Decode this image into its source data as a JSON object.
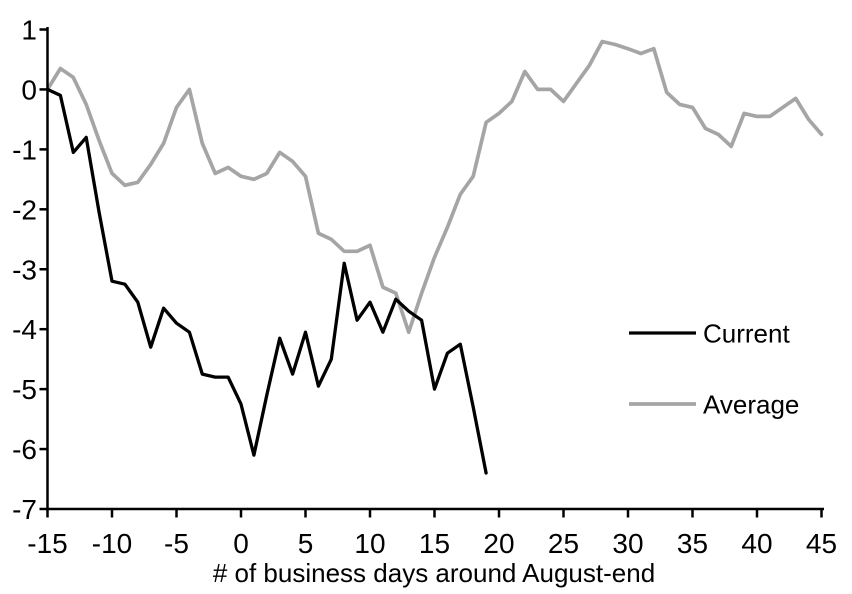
{
  "chart_data": {
    "type": "line",
    "title": "",
    "xlabel": "# of business days around August-end",
    "ylabel": "",
    "xlim": [
      -15,
      45
    ],
    "ylim": [
      -7,
      1
    ],
    "grid": false,
    "legend_position": "right-middle",
    "x_ticks": [
      {
        "value": -15,
        "label": "-15"
      },
      {
        "value": -10,
        "label": "-10"
      },
      {
        "value": -5,
        "label": "-5"
      },
      {
        "value": 0,
        "label": "0"
      },
      {
        "value": 5,
        "label": "5"
      },
      {
        "value": 10,
        "label": "10"
      },
      {
        "value": 15,
        "label": "15"
      },
      {
        "value": 20,
        "label": "20"
      },
      {
        "value": 25,
        "label": "25"
      },
      {
        "value": 30,
        "label": "30"
      },
      {
        "value": 35,
        "label": "35"
      },
      {
        "value": 40,
        "label": "40"
      },
      {
        "value": 45,
        "label": "45"
      }
    ],
    "y_ticks": [
      {
        "value": 1,
        "label": "1"
      },
      {
        "value": 0,
        "label": "0"
      },
      {
        "value": -1,
        "label": "-1"
      },
      {
        "value": -2,
        "label": "-2"
      },
      {
        "value": -3,
        "label": "-3"
      },
      {
        "value": -4,
        "label": "-4"
      },
      {
        "value": -5,
        "label": "-5"
      },
      {
        "value": -6,
        "label": "-6"
      },
      {
        "value": -7,
        "label": "-7"
      }
    ],
    "series": [
      {
        "name": "Current",
        "color": "#000000",
        "x": [
          -15,
          -14,
          -13,
          -12,
          -11,
          -10,
          -9,
          -8,
          -7,
          -6,
          -5,
          -4,
          -3,
          -2,
          -1,
          0,
          1,
          2,
          3,
          4,
          5,
          6,
          7,
          8,
          9,
          10,
          11,
          12,
          13,
          14,
          15,
          16,
          17,
          18,
          19
        ],
        "values": [
          0,
          -0.1,
          -1.05,
          -0.8,
          -2.05,
          -3.2,
          -3.25,
          -3.55,
          -4.3,
          -3.65,
          -3.9,
          -4.05,
          -4.75,
          -4.8,
          -4.8,
          -5.25,
          -6.1,
          -5.1,
          -4.15,
          -4.75,
          -4.05,
          -4.95,
          -4.5,
          -2.9,
          -3.85,
          -3.55,
          -4.05,
          -3.5,
          -3.7,
          -3.85,
          -5.0,
          -4.4,
          -4.25,
          -5.3,
          -6.4
        ]
      },
      {
        "name": "Average",
        "color": "#a5a5a5",
        "x": [
          -15,
          -14,
          -13,
          -12,
          -11,
          -10,
          -9,
          -8,
          -7,
          -6,
          -5,
          -4,
          -3,
          -2,
          -1,
          0,
          1,
          2,
          3,
          4,
          5,
          6,
          7,
          8,
          9,
          10,
          11,
          12,
          13,
          14,
          15,
          16,
          17,
          18,
          19,
          20,
          21,
          22,
          23,
          24,
          25,
          26,
          27,
          28,
          29,
          30,
          31,
          32,
          33,
          34,
          35,
          36,
          37,
          38,
          39,
          40,
          41,
          42,
          43,
          44,
          45
        ],
        "values": [
          0,
          0.35,
          0.2,
          -0.25,
          -0.85,
          -1.4,
          -1.6,
          -1.55,
          -1.25,
          -0.9,
          -0.3,
          0,
          -0.9,
          -1.4,
          -1.3,
          -1.45,
          -1.5,
          -1.4,
          -1.05,
          -1.2,
          -1.45,
          -2.4,
          -2.5,
          -2.7,
          -2.7,
          -2.6,
          -3.3,
          -3.4,
          -4.05,
          -3.4,
          -2.8,
          -2.3,
          -1.75,
          -1.45,
          -0.55,
          -0.4,
          -0.2,
          0.3,
          0,
          0,
          -0.2,
          0.1,
          0.4,
          0.8,
          0.75,
          0.68,
          0.6,
          0.68,
          -0.05,
          -0.25,
          -0.3,
          -0.65,
          -0.75,
          -0.95,
          -0.4,
          -0.45,
          -0.45,
          -0.3,
          -0.15,
          -0.5,
          -0.75
        ]
      }
    ]
  }
}
